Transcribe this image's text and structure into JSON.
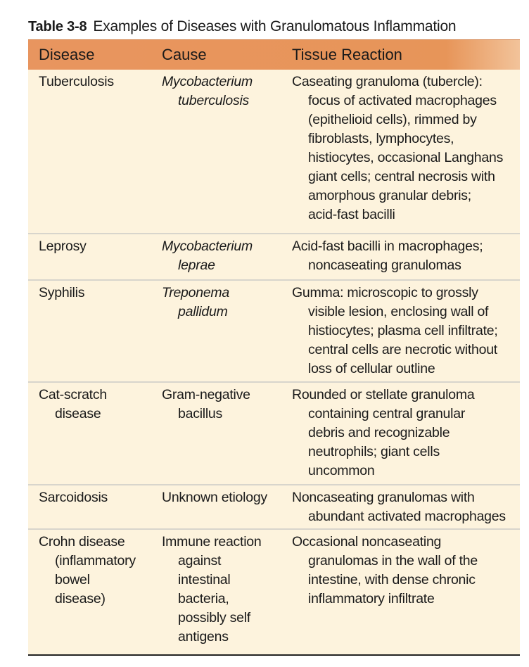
{
  "caption": {
    "number": "Table 3-8",
    "title": "Examples of Diseases with Granulomatous Inflammation"
  },
  "headers": {
    "disease": "Disease",
    "cause": "Cause",
    "reaction": "Tissue Reaction"
  },
  "rows": [
    {
      "disease": [
        "Tuberculosis"
      ],
      "cause": [
        "Mycobacterium",
        "tuberculosis"
      ],
      "cause_italic": true,
      "reaction": [
        "Caseating granuloma (tubercle):",
        "focus of activated macrophages",
        "(epithelioid cells), rimmed by",
        "fibroblasts, lymphocytes,",
        "histiocytes, occasional Langhans",
        "giant cells; central necrosis with",
        "amorphous granular debris;",
        "acid-fast bacilli"
      ]
    },
    {
      "disease": [
        "Leprosy"
      ],
      "cause": [
        "Mycobacterium",
        "leprae"
      ],
      "cause_italic": true,
      "reaction": [
        "Acid-fast bacilli in macrophages;",
        "noncaseating granulomas"
      ]
    },
    {
      "disease": [
        "Syphilis"
      ],
      "cause": [
        "Treponema",
        "pallidum"
      ],
      "cause_italic": true,
      "reaction": [
        "Gumma: microscopic to grossly",
        "visible lesion, enclosing wall of",
        "histiocytes; plasma cell infiltrate;",
        "central cells are necrotic without",
        "loss of cellular outline"
      ]
    },
    {
      "disease": [
        "Cat-scratch",
        "disease"
      ],
      "cause": [
        "Gram-negative",
        "bacillus"
      ],
      "cause_italic": false,
      "reaction": [
        "Rounded or stellate granuloma",
        "containing central granular",
        "debris and recognizable",
        "neutrophils; giant cells",
        "uncommon"
      ]
    },
    {
      "disease": [
        "Sarcoidosis"
      ],
      "cause": [
        "Unknown etiology"
      ],
      "cause_italic": false,
      "reaction": [
        "Noncaseating granulomas with",
        "abundant activated macrophages"
      ]
    },
    {
      "disease": [
        "Crohn disease",
        "(inflammatory",
        "bowel",
        "disease)"
      ],
      "cause": [
        "Immune reaction",
        "against",
        "intestinal",
        "bacteria,",
        "possibly self",
        "antigens"
      ],
      "cause_italic": false,
      "reaction": [
        "Occasional noncaseating",
        "granulomas in the wall of the",
        "intestine, with dense chronic",
        "inflammatory infiltrate"
      ]
    }
  ]
}
